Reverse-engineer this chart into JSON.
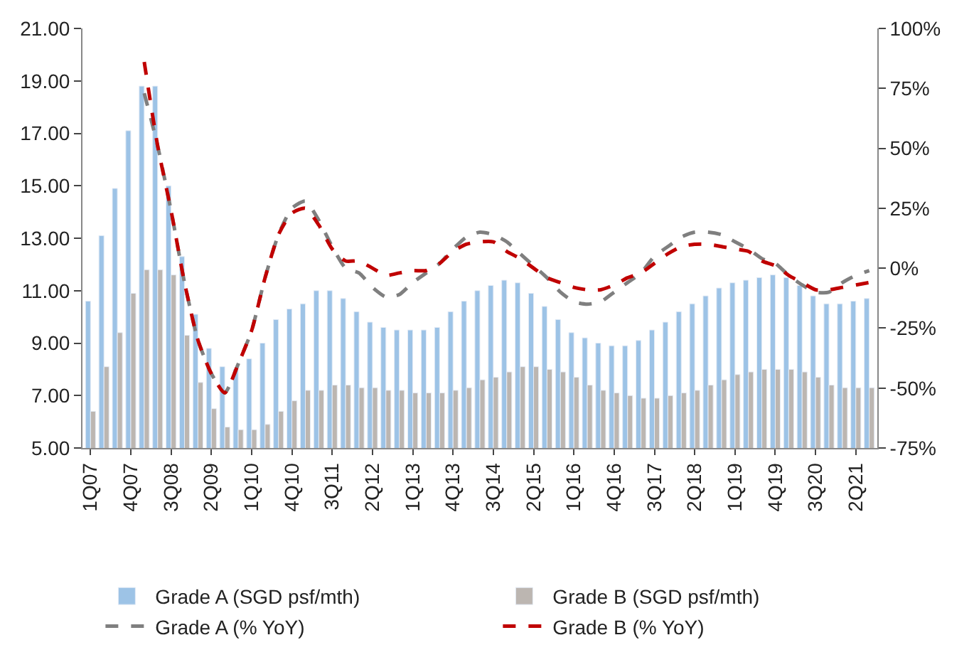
{
  "chart_data": {
    "type": "bar",
    "categories": [
      "1Q07",
      null,
      null,
      "4Q07",
      null,
      null,
      "3Q08",
      null,
      null,
      "2Q09",
      null,
      null,
      "1Q10",
      null,
      null,
      "4Q10",
      null,
      null,
      "3Q11",
      null,
      null,
      "2Q12",
      null,
      null,
      "1Q13",
      null,
      null,
      "4Q13",
      null,
      null,
      "3Q14",
      null,
      null,
      "2Q15",
      null,
      null,
      "1Q16",
      null,
      null,
      "4Q16",
      null,
      null,
      "3Q17",
      null,
      null,
      "2Q18",
      null,
      null,
      "1Q19",
      null,
      null,
      "4Q19",
      null,
      null,
      "3Q20",
      null,
      null,
      "2Q21",
      null
    ],
    "series": [
      {
        "name": "Grade A (SGD psf/mth)",
        "color": "#9dc3e6",
        "values": [
          10.6,
          13.1,
          14.9,
          17.1,
          18.8,
          18.8,
          15.0,
          12.3,
          10.1,
          8.8,
          8.1,
          8.0,
          8.4,
          9.0,
          9.9,
          10.3,
          10.5,
          11.0,
          11.0,
          10.7,
          10.2,
          9.8,
          9.6,
          9.5,
          9.5,
          9.5,
          9.6,
          10.2,
          10.6,
          11.0,
          11.2,
          11.4,
          11.3,
          10.9,
          10.4,
          9.9,
          9.4,
          9.2,
          9.0,
          8.9,
          8.9,
          9.1,
          9.5,
          9.8,
          10.2,
          10.5,
          10.8,
          11.1,
          11.3,
          11.4,
          11.5,
          11.6,
          11.5,
          11.2,
          10.8,
          10.5,
          10.5,
          10.6,
          10.7
        ]
      },
      {
        "name": "Grade B (SGD psf/mth)",
        "color": "#bcb6b1",
        "values": [
          6.4,
          8.1,
          9.4,
          10.9,
          11.8,
          11.8,
          11.6,
          9.3,
          7.5,
          6.5,
          5.8,
          5.7,
          5.7,
          5.9,
          6.4,
          6.8,
          7.2,
          7.2,
          7.4,
          7.4,
          7.3,
          7.3,
          7.2,
          7.2,
          7.1,
          7.1,
          7.1,
          7.2,
          7.3,
          7.6,
          7.7,
          7.9,
          8.1,
          8.1,
          8.0,
          7.9,
          7.7,
          7.4,
          7.2,
          7.1,
          7.0,
          6.9,
          6.9,
          7.0,
          7.1,
          7.2,
          7.4,
          7.6,
          7.8,
          7.9,
          8.0,
          8.0,
          8.0,
          7.9,
          7.7,
          7.4,
          7.3,
          7.3,
          7.3
        ]
      },
      {
        "name": "Grade A (% YoY)",
        "type": "line",
        "axis": "y2",
        "color": "#7f7f7f",
        "line_style": "dashed",
        "values": [
          null,
          null,
          null,
          null,
          73,
          51,
          24,
          -6,
          -30,
          -44,
          -52,
          -40,
          -26,
          -4,
          14,
          25,
          28,
          20,
          9,
          0,
          -2,
          -8,
          -12,
          -11,
          -6,
          -2,
          2,
          8,
          13,
          15,
          14,
          11,
          6,
          1,
          -4,
          -10,
          -14,
          -15,
          -14,
          -10,
          -6,
          -2,
          5,
          9,
          13,
          15,
          15,
          14,
          11,
          8,
          4,
          2,
          -3,
          -7,
          -10,
          -10,
          -6,
          -3,
          -1
        ]
      },
      {
        "name": "Grade B (% YoY)",
        "type": "line",
        "axis": "y2",
        "color": "#c00000",
        "line_style": "dashed",
        "values": [
          null,
          null,
          null,
          null,
          86,
          51,
          24,
          -6,
          -30,
          -44,
          -52,
          -40,
          -26,
          -4,
          14,
          23,
          25,
          18,
          8,
          3,
          3,
          0,
          -3,
          -2,
          -1,
          -1,
          2,
          7,
          10,
          11,
          11,
          7,
          4,
          0,
          -4,
          -6,
          -8,
          -9,
          -9,
          -7,
          -4,
          -2,
          2,
          6,
          9,
          10,
          10,
          9,
          8,
          7,
          3,
          1,
          -3,
          -6,
          -9,
          -9,
          -8,
          -7,
          -6
        ]
      }
    ],
    "ylim": [
      5,
      21
    ],
    "yticks": [
      {
        "value": 5,
        "label": "5.00"
      },
      {
        "value": 7,
        "label": "7.00"
      },
      {
        "value": 9,
        "label": "9.00"
      },
      {
        "value": 11,
        "label": "11.00"
      },
      {
        "value": 13,
        "label": "13.00"
      },
      {
        "value": 15,
        "label": "15.00"
      },
      {
        "value": 17,
        "label": "17.00"
      },
      {
        "value": 19,
        "label": "19.00"
      },
      {
        "value": 21,
        "label": "21.00"
      }
    ],
    "y2lim": [
      -75,
      100
    ],
    "y2ticks": [
      {
        "value": -75,
        "label": "-75%"
      },
      {
        "value": -50,
        "label": "-50%"
      },
      {
        "value": -25,
        "label": "-25%"
      },
      {
        "value": 0,
        "label": "0%"
      },
      {
        "value": 25,
        "label": "25%"
      },
      {
        "value": 50,
        "label": "50%"
      },
      {
        "value": 75,
        "label": "75%"
      },
      {
        "value": 100,
        "label": "100%"
      }
    ],
    "legend": "bottom"
  }
}
